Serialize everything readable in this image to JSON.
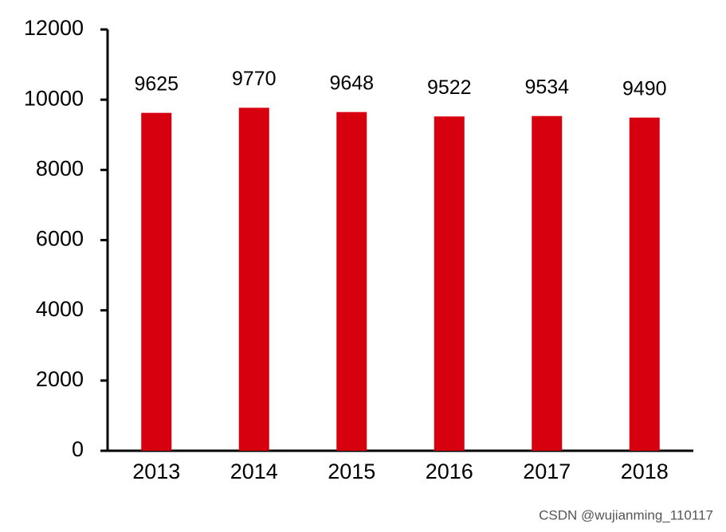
{
  "chart_data": {
    "type": "bar",
    "categories": [
      "2013",
      "2014",
      "2015",
      "2016",
      "2017",
      "2018"
    ],
    "values": [
      9625,
      9770,
      9648,
      9522,
      9534,
      9490
    ],
    "color": "#d7000f",
    "ylim": [
      0,
      12000
    ],
    "yticks": [
      0,
      2000,
      4000,
      6000,
      8000,
      10000,
      12000
    ],
    "grid": false,
    "watermark": "CSDN @wujianming_110117"
  }
}
